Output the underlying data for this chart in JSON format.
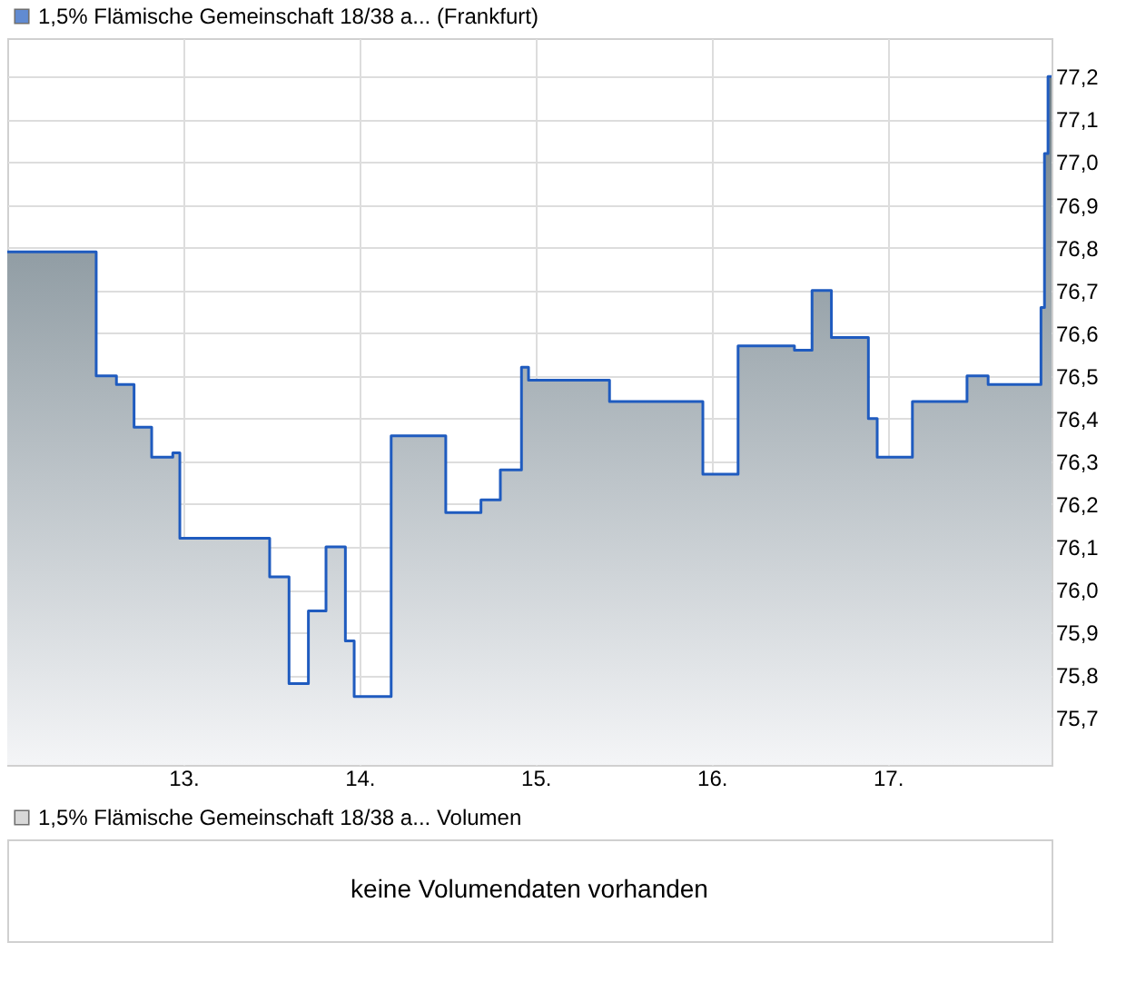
{
  "chart_data": [
    {
      "type": "area",
      "legend": "top left",
      "grid": true,
      "x": [
        12.0,
        12.505,
        12.505,
        12.62,
        12.62,
        12.72,
        12.72,
        12.82,
        12.82,
        12.94,
        12.94,
        12.98,
        12.98,
        13.49,
        13.49,
        13.6,
        13.6,
        13.71,
        13.71,
        13.81,
        13.81,
        13.92,
        13.92,
        13.97,
        13.97,
        14.18,
        14.18,
        14.49,
        14.49,
        14.69,
        14.69,
        14.8,
        14.8,
        14.92,
        14.92,
        14.96,
        14.96,
        15.42,
        15.42,
        15.95,
        15.95,
        16.15,
        16.15,
        16.47,
        16.47,
        16.57,
        16.57,
        16.68,
        16.68,
        16.89,
        16.89,
        16.94,
        16.94,
        17.14,
        17.14,
        17.45,
        17.45,
        17.57,
        17.57,
        17.87,
        17.87,
        17.89,
        17.89,
        17.91,
        17.91,
        17.93
      ],
      "series": [
        {
          "name": "1,5% Flämische Gemeinschaft 18/38 a... (Frankfurt)",
          "color": "#1f5bbf",
          "values": [
            76.79,
            76.79,
            76.5,
            76.5,
            76.48,
            76.48,
            76.38,
            76.38,
            76.31,
            76.31,
            76.32,
            76.32,
            76.12,
            76.12,
            76.03,
            76.03,
            75.78,
            75.78,
            75.95,
            75.95,
            76.1,
            76.1,
            75.88,
            75.88,
            75.75,
            75.75,
            76.36,
            76.36,
            76.18,
            76.18,
            76.21,
            76.21,
            76.28,
            76.28,
            76.52,
            76.52,
            76.49,
            76.49,
            76.44,
            76.44,
            76.27,
            76.27,
            76.57,
            76.57,
            76.56,
            76.56,
            76.7,
            76.7,
            76.59,
            76.59,
            76.4,
            76.4,
            76.31,
            76.31,
            76.44,
            76.44,
            76.5,
            76.5,
            76.48,
            76.48,
            76.66,
            76.66,
            77.02,
            77.02,
            77.2,
            77.2
          ]
        }
      ],
      "xlim": [
        12.0,
        17.93
      ],
      "xticks": [
        {
          "value": 13,
          "label": "13."
        },
        {
          "value": 14,
          "label": "14."
        },
        {
          "value": 15,
          "label": "15."
        },
        {
          "value": 16,
          "label": "16."
        },
        {
          "value": 17,
          "label": "17."
        }
      ],
      "ylim": [
        75.59,
        77.29
      ],
      "yticks": [
        {
          "value": 75.7,
          "label": "75,7"
        },
        {
          "value": 75.8,
          "label": "75,8"
        },
        {
          "value": 75.9,
          "label": "75,9"
        },
        {
          "value": 76.0,
          "label": "76,0"
        },
        {
          "value": 76.1,
          "label": "76,1"
        },
        {
          "value": 76.2,
          "label": "76,2"
        },
        {
          "value": 76.3,
          "label": "76,3"
        },
        {
          "value": 76.4,
          "label": "76,4"
        },
        {
          "value": 76.5,
          "label": "76,5"
        },
        {
          "value": 76.6,
          "label": "76,6"
        },
        {
          "value": 76.7,
          "label": "76,7"
        },
        {
          "value": 76.8,
          "label": "76,8"
        },
        {
          "value": 76.9,
          "label": "76,9"
        },
        {
          "value": 77.0,
          "label": "77,0"
        },
        {
          "value": 77.1,
          "label": "77,1"
        },
        {
          "value": 77.2,
          "label": "77,2"
        }
      ]
    },
    {
      "type": "other",
      "legend": "top left",
      "series": [
        {
          "name": "1,5% Flämische Gemeinschaft 18/38 a... Volumen",
          "color": "#c8c8c8"
        }
      ],
      "annotations": [
        "keine Volumendaten vorhanden"
      ]
    }
  ]
}
